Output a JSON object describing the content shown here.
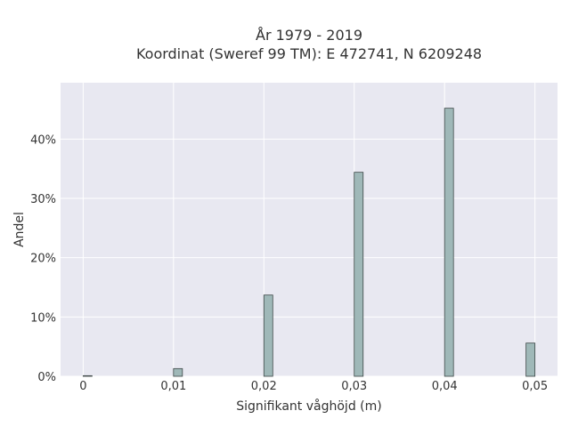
{
  "chart_data": {
    "type": "bar",
    "title_lines": [
      "År 1979 - 2019",
      "Koordinat (Sweref 99 TM): E 472741, N 6209248"
    ],
    "xlabel": "Signifikant våghöjd (m)",
    "ylabel": "Andel",
    "x": [
      0,
      0.01,
      0.02,
      0.03,
      0.04,
      0.05
    ],
    "values": [
      0.1,
      1.3,
      13.7,
      34.4,
      45.2,
      5.6
    ],
    "xlim": [
      -0.0025,
      0.0525
    ],
    "ylim": [
      0,
      49.5
    ],
    "xticks": [
      {
        "value": 0,
        "label": "0"
      },
      {
        "value": 0.01,
        "label": "0,01"
      },
      {
        "value": 0.02,
        "label": "0,02"
      },
      {
        "value": 0.03,
        "label": "0,03"
      },
      {
        "value": 0.04,
        "label": "0,04"
      },
      {
        "value": 0.05,
        "label": "0,05"
      }
    ],
    "yticks": [
      {
        "value": 0,
        "label": "0%"
      },
      {
        "value": 10,
        "label": "10%"
      },
      {
        "value": 20,
        "label": "20%"
      },
      {
        "value": 30,
        "label": "30%"
      },
      {
        "value": 40,
        "label": "40%"
      }
    ],
    "grid": true,
    "colors": {
      "bar_fill": "#9fb8b8",
      "bar_stroke": "#3d4747",
      "plot_bg": "#e8e8f1",
      "grid": "#ffffff"
    }
  }
}
